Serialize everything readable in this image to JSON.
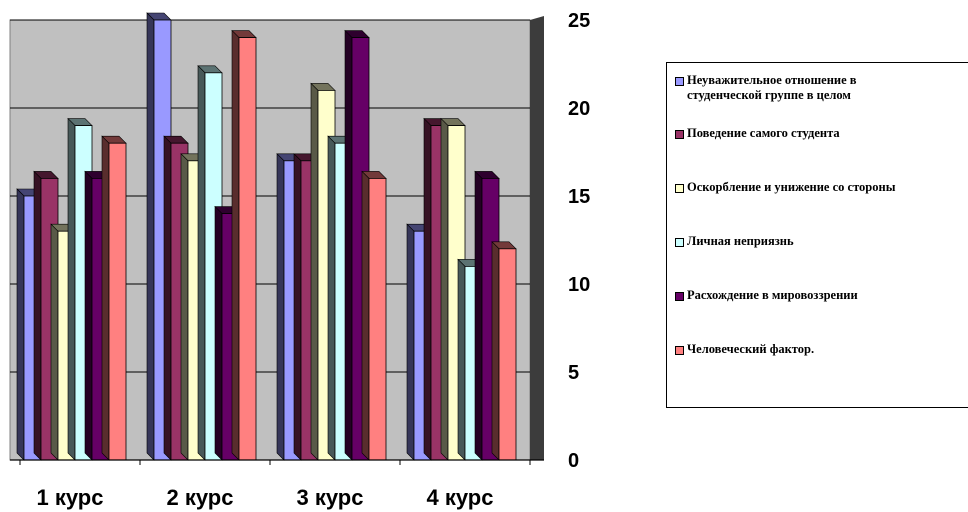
{
  "chart_data": {
    "type": "bar",
    "categories": [
      "1 курс",
      "2 курс",
      "3 курс",
      "4 курс"
    ],
    "series": [
      {
        "name": "Неуважительное отношение в\nстуденческой группе в целом",
        "values": [
          15,
          25,
          17,
          13
        ]
      },
      {
        "name": "Поведение самого студента",
        "values": [
          16,
          18,
          17,
          19
        ]
      },
      {
        "name": "Оскорбление и унижение со стороны",
        "values": [
          13,
          17,
          21,
          19
        ]
      },
      {
        "name": "Личная неприязнь",
        "values": [
          19,
          22,
          18,
          11
        ]
      },
      {
        "name": "Расхождение в мировоззрении",
        "values": [
          16,
          14,
          24,
          16
        ]
      },
      {
        "name": "Человеческий фактор.",
        "values": [
          18,
          24,
          16,
          12
        ]
      }
    ],
    "colors": [
      "#9999ff",
      "#993366",
      "#ffffcc",
      "#ccffff",
      "#660066",
      "#ff8080"
    ],
    "ylim": [
      0,
      25
    ],
    "yticks": [
      0,
      5,
      10,
      15,
      20,
      25
    ],
    "y_axis_side": "right",
    "grid": true,
    "legend_position": "right",
    "style": "3d-clustered-bar"
  }
}
